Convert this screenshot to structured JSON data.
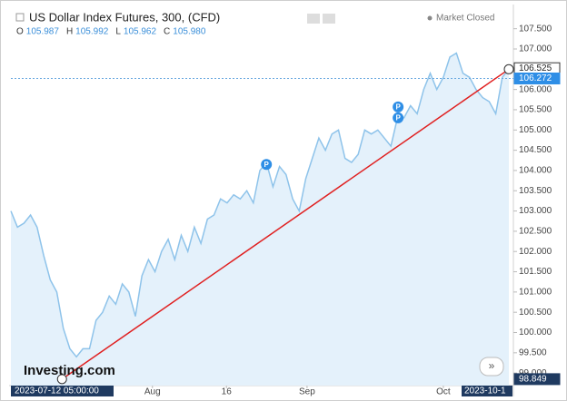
{
  "chart_data": {
    "type": "area",
    "title": "US Dollar Index Futures, 300, (CFD)",
    "ohlc": [
      "O",
      "105.987",
      "H",
      "105.992",
      "L",
      "105.962",
      "C",
      "105.980"
    ],
    "status": "Market Closed",
    "brand": "Investing.com",
    "series": [
      {
        "name": "US Dollar Index Futures",
        "color": "#8ec3ea",
        "values": [
          103.0,
          102.6,
          102.7,
          102.9,
          102.6,
          101.9,
          101.3,
          101.0,
          100.1,
          99.6,
          99.4,
          99.6,
          99.6,
          100.3,
          100.5,
          100.9,
          100.7,
          101.2,
          101.0,
          100.4,
          101.4,
          101.8,
          101.5,
          102.0,
          102.3,
          101.8,
          102.4,
          102.0,
          102.6,
          102.2,
          102.8,
          102.9,
          103.3,
          103.2,
          103.4,
          103.3,
          103.5,
          103.2,
          104.0,
          104.2,
          103.6,
          104.1,
          103.9,
          103.3,
          103.0,
          103.8,
          104.3,
          104.8,
          104.5,
          104.9,
          105.0,
          104.3,
          104.2,
          104.4,
          105.0,
          104.9,
          105.0,
          104.8,
          104.6,
          105.3,
          105.3,
          105.6,
          105.4,
          106.0,
          106.4,
          106.0,
          106.3,
          106.8,
          106.9,
          106.4,
          106.3,
          106.0,
          105.8,
          105.7,
          105.4,
          106.3,
          106.5
        ]
      }
    ],
    "xlim": [
      0,
      76
    ],
    "ylim": [
      98.69,
      108.03
    ],
    "xticks": [
      {
        "value": 21.6,
        "label": "Aug"
      },
      {
        "value": 32.9,
        "label": "16"
      },
      {
        "value": 45.2,
        "label": "Sep"
      },
      {
        "value": 66.0,
        "label": "Oct"
      }
    ],
    "x_start_label": "2023-07-12 05:00:00",
    "x_end_label": "2023-10-1",
    "yticks": [
      {
        "value": 99,
        "label": "99.000"
      },
      {
        "value": 99.5,
        "label": "99.500"
      },
      {
        "value": 100,
        "label": "100.000"
      },
      {
        "value": 100.5,
        "label": "100.500"
      },
      {
        "value": 101,
        "label": "101.000"
      },
      {
        "value": 101.5,
        "label": "101.500"
      },
      {
        "value": 102,
        "label": "102.000"
      },
      {
        "value": 102.5,
        "label": "102.500"
      },
      {
        "value": 103,
        "label": "103.000"
      },
      {
        "value": 103.5,
        "label": "103.500"
      },
      {
        "value": 104,
        "label": "104.000"
      },
      {
        "value": 104.5,
        "label": "104.500"
      },
      {
        "value": 105,
        "label": "105.000"
      },
      {
        "value": 105.5,
        "label": "105.500"
      },
      {
        "value": 106,
        "label": "106.000"
      },
      {
        "value": 107,
        "label": "107.000"
      },
      {
        "value": 107.5,
        "label": "107.500"
      }
    ],
    "price_labels": [
      {
        "value": 106.525,
        "label": "106.525",
        "color": "#ffffff"
      },
      {
        "value": 106.272,
        "label": "106.272",
        "color": "#2e8ee6"
      },
      {
        "value": 98.849,
        "label": "98.849",
        "color": "#1f3a60"
      }
    ],
    "trend_line": {
      "color": "#e02020",
      "start": [
        7.8,
        98.85
      ],
      "end": [
        76,
        106.5
      ]
    },
    "markers": [
      {
        "label": "P",
        "x": 39,
        "y": 104.15
      },
      {
        "label": "P",
        "x": 59.1,
        "y": 105.57
      },
      {
        "label": "P",
        "x": 59.1,
        "y": 105.3
      }
    ]
  }
}
